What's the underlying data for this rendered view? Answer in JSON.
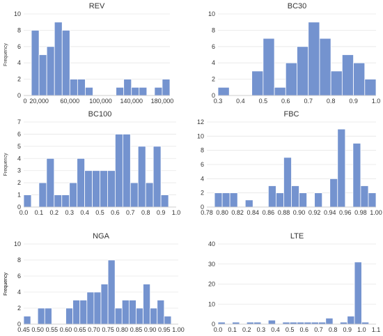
{
  "chart_data": [
    {
      "type": "bar",
      "title": "REV",
      "ylabel": "Frequency",
      "ylim": [
        0,
        10
      ],
      "yticks": [
        0,
        2,
        4,
        6,
        8,
        10
      ],
      "xlim": [
        0,
        190000
      ],
      "xtick_values": [
        20000,
        60000,
        100000,
        140000,
        180000
      ],
      "xtick_labels": [
        "20,000",
        "60,000",
        "100,000",
        "140,000",
        "180,000"
      ],
      "extra_labels": [
        {
          "text": "0",
          "x": 0
        }
      ],
      "bin_width": 10000,
      "bin_starts": [
        10000,
        20000,
        30000,
        40000,
        50000,
        60000,
        70000,
        80000,
        90000,
        100000,
        110000,
        120000,
        130000,
        140000,
        150000,
        160000,
        170000,
        180000
      ],
      "values": [
        8,
        5,
        6,
        9,
        8,
        2,
        2,
        1,
        0,
        0,
        0,
        1,
        2,
        1,
        1,
        0,
        1,
        2
      ],
      "color": "#7493cf"
    },
    {
      "type": "bar",
      "title": "BC30",
      "ylabel": "",
      "ylim": [
        0,
        10
      ],
      "yticks": [
        0,
        2,
        4,
        6,
        8,
        10
      ],
      "xlim": [
        0.3,
        1.0
      ],
      "xtick_values": [
        0.3,
        0.4,
        0.5,
        0.6,
        0.7,
        0.8,
        0.9,
        1.0
      ],
      "xtick_labels": [
        "0.3",
        "0.4",
        "0.5",
        "0.6",
        "0.7",
        "0.8",
        "0.9",
        "1.0"
      ],
      "extra_labels": [],
      "bin_width": 0.05,
      "bin_starts": [
        0.3,
        0.35,
        0.4,
        0.45,
        0.5,
        0.55,
        0.6,
        0.65,
        0.7,
        0.75,
        0.8,
        0.85,
        0.9,
        0.95
      ],
      "values": [
        1,
        0,
        0,
        3,
        7,
        1,
        4,
        6,
        9,
        7,
        3,
        5,
        4,
        2
      ],
      "color": "#7493cf"
    },
    {
      "type": "bar",
      "title": "BC100",
      "ylabel": "Frequency",
      "ylim": [
        0,
        7
      ],
      "yticks": [
        0,
        1,
        2,
        3,
        4,
        5,
        6,
        7
      ],
      "xlim": [
        0.0,
        1.0
      ],
      "xtick_values": [
        0.0,
        0.1,
        0.2,
        0.3,
        0.4,
        0.5,
        0.6,
        0.7,
        0.8,
        0.9,
        1.0
      ],
      "xtick_labels": [
        "0.0",
        "0.1",
        "0.2",
        "0.3",
        "0.4",
        "0.5",
        "0.6",
        "0.7",
        "0.8",
        "0.9",
        "1.0"
      ],
      "extra_labels": [],
      "bin_width": 0.05,
      "bin_starts": [
        0.0,
        0.05,
        0.1,
        0.15,
        0.2,
        0.25,
        0.3,
        0.35,
        0.4,
        0.45,
        0.5,
        0.55,
        0.6,
        0.65,
        0.7,
        0.75,
        0.8,
        0.85,
        0.9
      ],
      "values": [
        1,
        0,
        2,
        4,
        1,
        1,
        2,
        4,
        3,
        3,
        3,
        3,
        6,
        6,
        2,
        5,
        2,
        5,
        1
      ],
      "color": "#7493cf"
    },
    {
      "type": "bar",
      "title": "FBC",
      "ylabel": "",
      "ylim": [
        0,
        12
      ],
      "yticks": [
        0,
        2,
        4,
        6,
        8,
        10,
        12
      ],
      "xlim": [
        0.78,
        1.0
      ],
      "xtick_values": [
        0.78,
        0.8,
        0.82,
        0.84,
        0.86,
        0.88,
        0.9,
        0.92,
        0.94,
        0.96,
        0.98,
        1.0
      ],
      "xtick_labels": [
        "0.78",
        "0.80",
        "0.82",
        "0.84",
        "0.86",
        "0.88",
        "0.90",
        "0.92",
        "0.94",
        "0.96",
        "0.98",
        "1.00"
      ],
      "extra_labels": [],
      "bin_width": 0.01,
      "bin_starts": [
        0.78,
        0.79,
        0.8,
        0.81,
        0.82,
        0.83,
        0.84,
        0.85,
        0.86,
        0.87,
        0.88,
        0.89,
        0.9,
        0.91,
        0.92,
        0.93,
        0.94,
        0.95,
        0.96,
        0.97,
        0.98,
        0.99
      ],
      "values": [
        0,
        2,
        2,
        2,
        0,
        1,
        0,
        0,
        3,
        2,
        7,
        3,
        2,
        0,
        2,
        0,
        4,
        11,
        0,
        9,
        3,
        2
      ],
      "color": "#7493cf"
    },
    {
      "type": "bar",
      "title": "NGA",
      "ylabel": "Frequency",
      "ylim": [
        0,
        10
      ],
      "yticks": [
        0,
        2,
        4,
        6,
        8,
        10
      ],
      "xlim": [
        0.45,
        1.0
      ],
      "xtick_values": [
        0.45,
        0.5,
        0.55,
        0.6,
        0.65,
        0.7,
        0.75,
        0.8,
        0.85,
        0.9,
        0.95,
        1.0
      ],
      "xtick_labels": [
        "0.45",
        "0.50",
        "0.55",
        "0.60",
        "0.65",
        "0.70",
        "0.75",
        "0.80",
        "0.85",
        "0.90",
        "0.95",
        "1.00"
      ],
      "extra_labels": [],
      "bin_width": 0.025,
      "bin_starts": [
        0.45,
        0.475,
        0.5,
        0.525,
        0.55,
        0.575,
        0.6,
        0.625,
        0.65,
        0.675,
        0.7,
        0.725,
        0.75,
        0.775,
        0.8,
        0.825,
        0.85,
        0.875,
        0.9,
        0.925,
        0.95
      ],
      "values": [
        1,
        0,
        2,
        2,
        0,
        0,
        2,
        3,
        3,
        4,
        4,
        5,
        8,
        2,
        3,
        3,
        2,
        5,
        2,
        3,
        1
      ],
      "color": "#7493cf"
    },
    {
      "type": "bar",
      "title": "LTE",
      "ylabel": "Frequency",
      "ylim": [
        0,
        40
      ],
      "yticks": [
        0,
        10,
        20,
        30,
        40
      ],
      "xlim": [
        0.0,
        1.1
      ],
      "xtick_values": [
        0.0,
        0.1,
        0.2,
        0.3,
        0.4,
        0.5,
        0.6,
        0.7,
        0.8,
        0.9,
        1.0,
        1.1
      ],
      "xtick_labels": [
        "0.0",
        "0.1",
        "0.2",
        "0.3",
        "0.4",
        "0.5",
        "0.6",
        "0.7",
        "0.8",
        "0.9",
        "1.0",
        "1.1"
      ],
      "extra_labels": [],
      "bin_width": 0.05,
      "bin_starts": [
        0.0,
        0.05,
        0.1,
        0.15,
        0.2,
        0.25,
        0.3,
        0.35,
        0.4,
        0.45,
        0.5,
        0.55,
        0.6,
        0.65,
        0.7,
        0.75,
        0.8,
        0.85,
        0.9,
        0.95,
        1.0
      ],
      "values": [
        1,
        0,
        1,
        0,
        1,
        1,
        0,
        2,
        0,
        1,
        1,
        1,
        1,
        1,
        1,
        3,
        0,
        1,
        4,
        31,
        1
      ],
      "color": "#7493cf"
    }
  ]
}
